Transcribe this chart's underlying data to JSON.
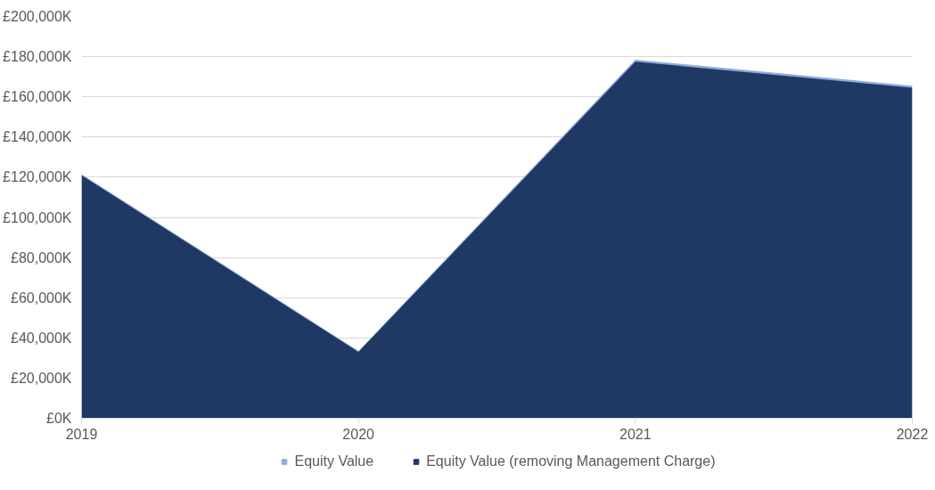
{
  "chart_data": {
    "type": "area",
    "x": [
      2019,
      2020,
      2021,
      2022
    ],
    "series": [
      {
        "name": "Equity Value",
        "color": "#8faadc",
        "values": [
          121500,
          33500,
          178500,
          165500
        ]
      },
      {
        "name": "Equity Value (removing Management Charge)",
        "color": "#203864",
        "values": [
          121000,
          33000,
          177500,
          164500
        ]
      }
    ],
    "xlim": [
      2019,
      2022
    ],
    "xticks": [
      2019,
      2020,
      2021,
      2022
    ],
    "ylim": [
      0,
      200000
    ],
    "yticks": [
      {
        "value": 0,
        "label": "£0K"
      },
      {
        "value": 20000,
        "label": "£20,000K"
      },
      {
        "value": 40000,
        "label": "£40,000K"
      },
      {
        "value": 60000,
        "label": "£60,000K"
      },
      {
        "value": 80000,
        "label": "£80,000K"
      },
      {
        "value": 100000,
        "label": "£100,000K"
      },
      {
        "value": 120000,
        "label": "£120,000K"
      },
      {
        "value": 140000,
        "label": "£140,000K"
      },
      {
        "value": 160000,
        "label": "£160,000K"
      },
      {
        "value": 180000,
        "label": "£180,000K"
      },
      {
        "value": 200000,
        "label": "£200,000K"
      }
    ],
    "grid": "y",
    "legend": "bottom"
  }
}
